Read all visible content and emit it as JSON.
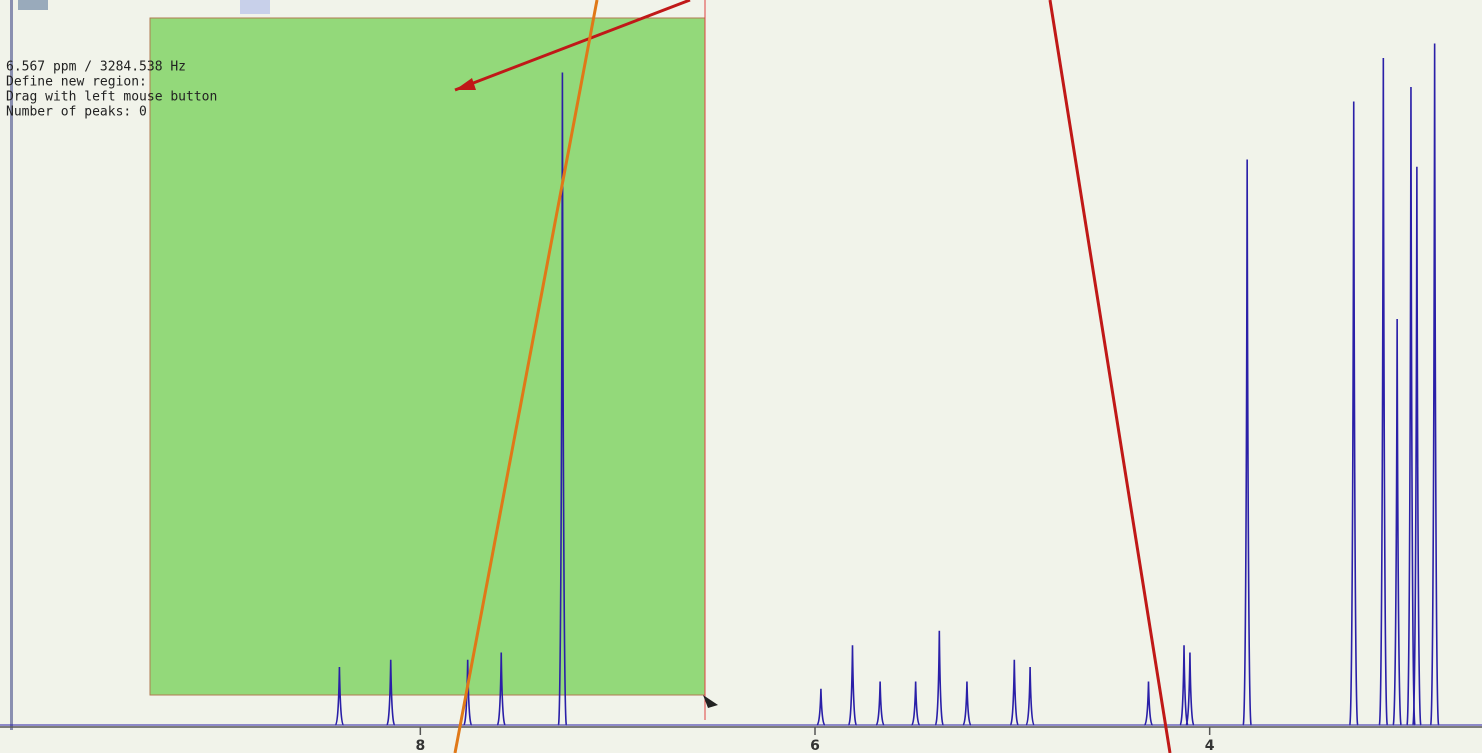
{
  "status": {
    "lines": [
      "6.567 ppm / 3284.538 Hz",
      "Define new region:",
      "Drag with left mouse button",
      "Number of peaks: 0"
    ]
  },
  "spectrum": {
    "xlim": [
      10.13,
      2.62
    ],
    "ylim": [
      0,
      100
    ],
    "xticks": [
      8,
      6,
      4
    ],
    "color": "#2a1fa8",
    "peaks": [
      {
        "ppm": 8.41,
        "height": 8
      },
      {
        "ppm": 8.15,
        "height": 9
      },
      {
        "ppm": 7.76,
        "height": 9
      },
      {
        "ppm": 7.59,
        "height": 10
      },
      {
        "ppm": 7.28,
        "height": 90
      },
      {
        "ppm": 5.97,
        "height": 5
      },
      {
        "ppm": 5.81,
        "height": 11
      },
      {
        "ppm": 5.67,
        "height": 6
      },
      {
        "ppm": 5.49,
        "height": 6
      },
      {
        "ppm": 5.37,
        "height": 13
      },
      {
        "ppm": 5.23,
        "height": 6
      },
      {
        "ppm": 4.99,
        "height": 9
      },
      {
        "ppm": 4.91,
        "height": 8
      },
      {
        "ppm": 4.31,
        "height": 6
      },
      {
        "ppm": 4.13,
        "height": 11
      },
      {
        "ppm": 4.1,
        "height": 10
      },
      {
        "ppm": 3.81,
        "height": 78
      },
      {
        "ppm": 3.27,
        "height": 86
      },
      {
        "ppm": 3.12,
        "height": 92
      },
      {
        "ppm": 3.05,
        "height": 56
      },
      {
        "ppm": 2.98,
        "height": 88
      },
      {
        "ppm": 2.95,
        "height": 77
      },
      {
        "ppm": 2.86,
        "height": 94
      }
    ]
  }
}
